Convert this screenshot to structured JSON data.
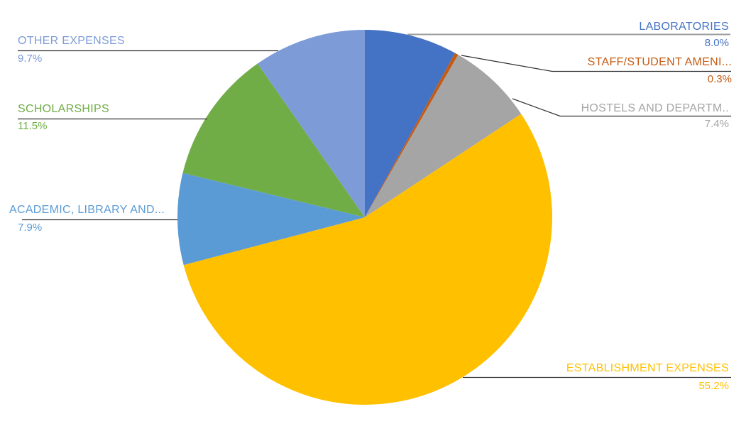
{
  "chart_data": {
    "type": "pie",
    "title": "",
    "legend": "none",
    "labels_position": "outside-with-leader-lines",
    "start_angle_deg": 0,
    "direction": "clockwise",
    "background": "#FFFFFF",
    "categories": [
      "LABORATORIES",
      "STAFF/STUDENT AMENI...",
      "HOSTELS AND DEPARTM..",
      "ESTABLISHMENT EXPENSES",
      "ACADEMIC, LIBRARY AND...",
      "SCHOLARSHIPS",
      "OTHER EXPENSES"
    ],
    "values": [
      8.0,
      0.3,
      7.4,
      55.2,
      7.9,
      11.5,
      9.7
    ],
    "slices": [
      {
        "label": "LABORATORIES",
        "value": 8.0,
        "value_label": "8.0%",
        "color": "#4472C4",
        "leader_color": "#9B9B9B"
      },
      {
        "label": "STAFF/STUDENT AMENI...",
        "value": 0.3,
        "value_label": "0.3%",
        "color": "#C55A11",
        "leader_color": "#303030"
      },
      {
        "label": "HOSTELS AND DEPARTM..",
        "value": 7.4,
        "value_label": "7.4%",
        "color": "#A5A5A5",
        "leader_color": "#303030"
      },
      {
        "label": "ESTABLISHMENT EXPENSES",
        "value": 55.2,
        "value_label": "55.2%",
        "color": "#FFC000",
        "leader_color": "#303030"
      },
      {
        "label": "ACADEMIC, LIBRARY AND...",
        "value": 7.9,
        "value_label": "7.9%",
        "color": "#5B9BD5",
        "leader_color": "#303030"
      },
      {
        "label": "SCHOLARSHIPS",
        "value": 11.5,
        "value_label": "11.5%",
        "color": "#70AD47",
        "leader_color": "#303030"
      },
      {
        "label": "OTHER EXPENSES",
        "value": 9.7,
        "value_label": "9.7%",
        "color": "#7D9BD7",
        "leader_color": "#303030"
      }
    ]
  }
}
